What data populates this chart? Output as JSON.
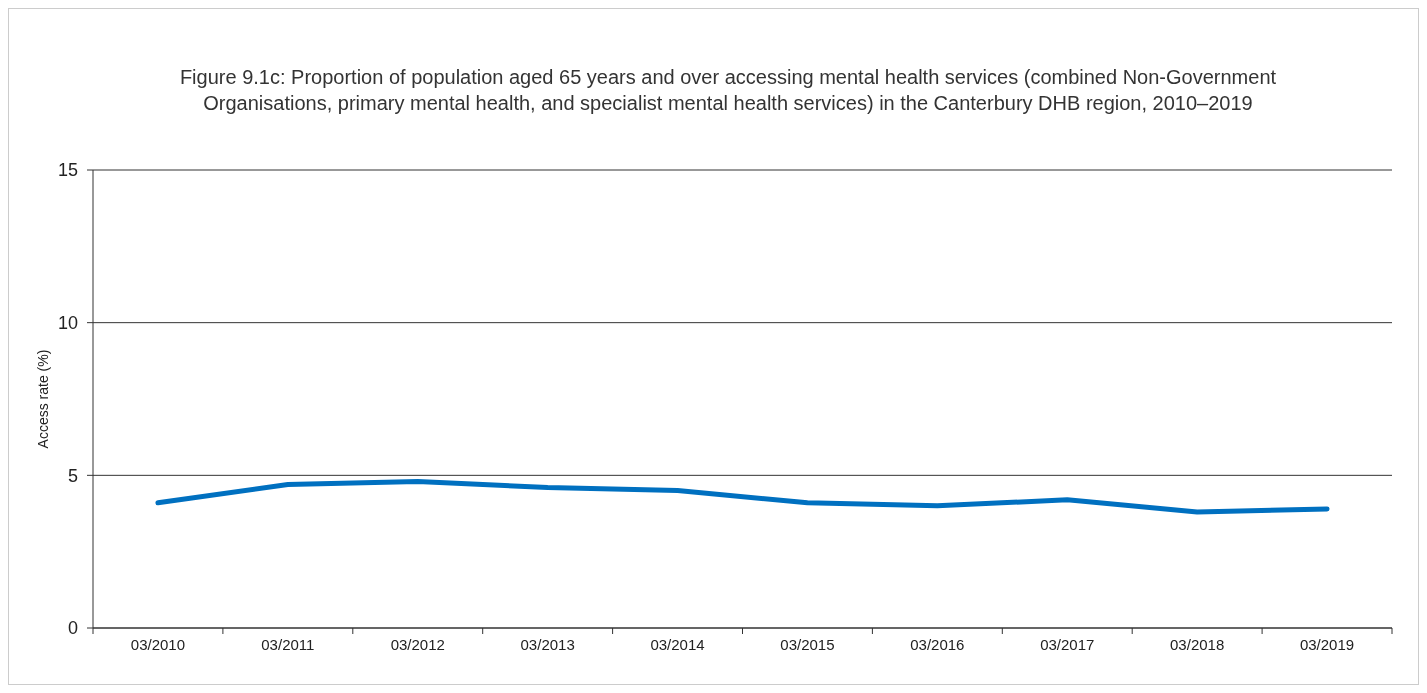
{
  "chart_data": {
    "type": "line",
    "title": "Figure 9.1c: Proportion of population aged 65 years and over accessing mental health services (combined Non-Government Organisations, primary mental health, and specialist mental health services) in the Canterbury DHB region, 2010–2019",
    "ylabel": "Access rate (%)",
    "categories": [
      "03/2010",
      "03/2011",
      "03/2012",
      "03/2013",
      "03/2014",
      "03/2015",
      "03/2016",
      "03/2017",
      "03/2018",
      "03/2019"
    ],
    "series": [
      {
        "color": "#0070c0",
        "values": [
          4.1,
          4.7,
          4.8,
          4.6,
          4.5,
          4.1,
          4.0,
          4.2,
          3.8,
          3.9
        ]
      }
    ],
    "ylim": [
      0,
      15
    ],
    "yticks": [
      0,
      5,
      10,
      15
    ],
    "grid": "y",
    "marker": "none",
    "line_style": "solid"
  }
}
